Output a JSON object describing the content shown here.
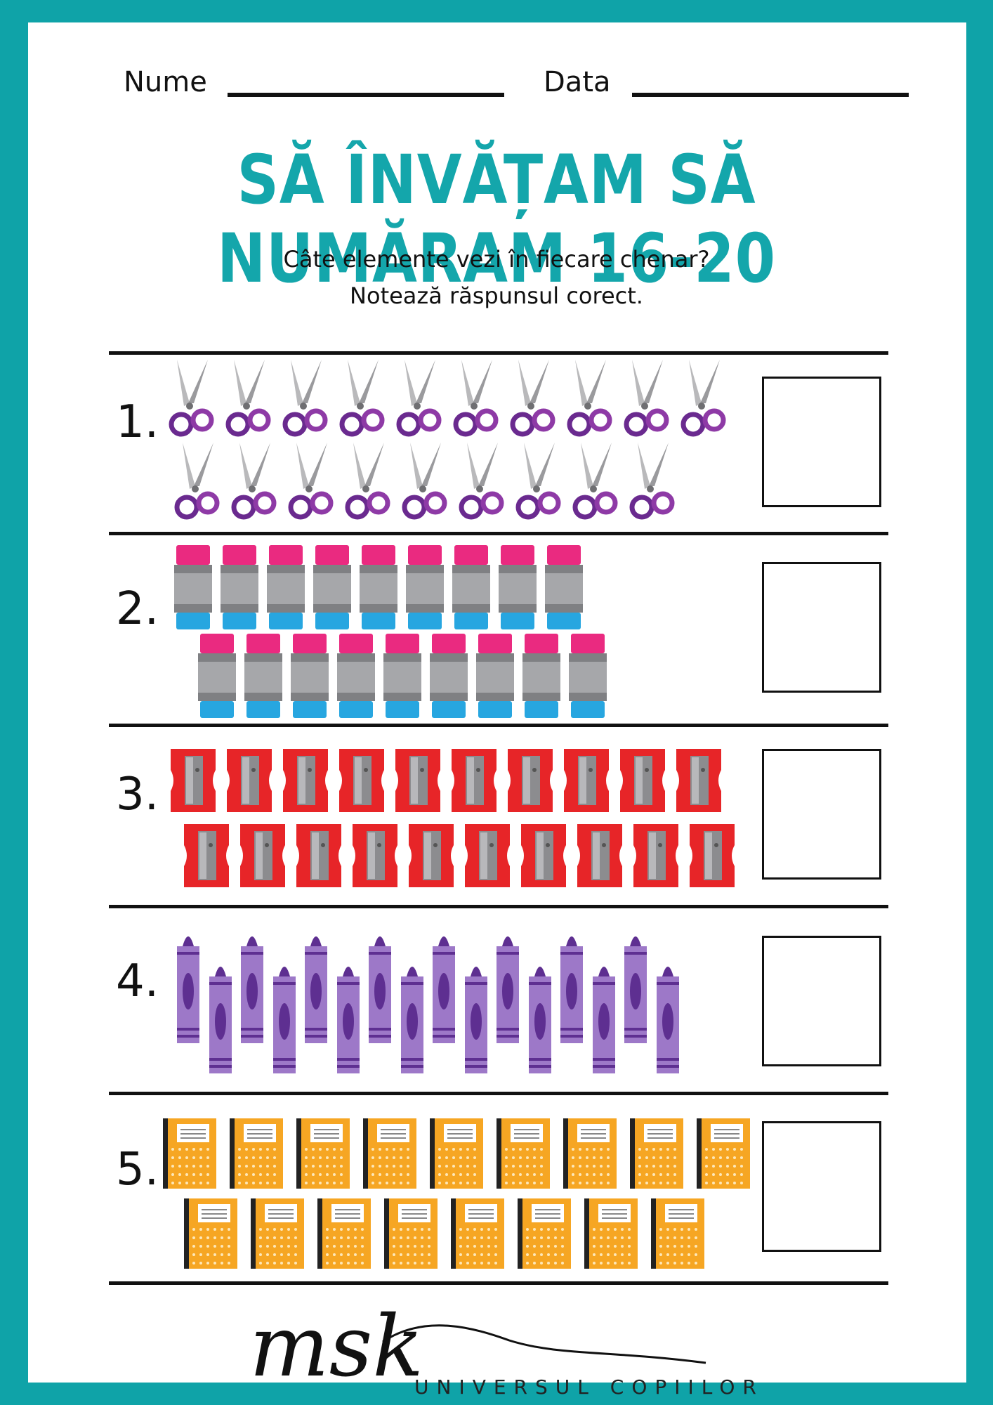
{
  "header": {
    "name_label": "Nume",
    "date_label": "Data"
  },
  "title": "SĂ ÎNVĂȚAM SĂ NUMĂRAM 16-20",
  "instructions": {
    "line1": "Câte elemente vezi în fiecare chenar?",
    "line2": "Notează răspunsul corect."
  },
  "exercises": [
    {
      "number": "1.",
      "item": "scissors-icon",
      "top_row": 10,
      "bottom_row": 9
    },
    {
      "number": "2.",
      "item": "eraser-icon",
      "top_row": 9,
      "bottom_row": 9
    },
    {
      "number": "3.",
      "item": "sharpener-icon",
      "top_row": 10,
      "bottom_row": 10
    },
    {
      "number": "4.",
      "item": "crayon-icon",
      "top_row": 8,
      "bottom_row": 8
    },
    {
      "number": "5.",
      "item": "notebook-icon",
      "top_row": 9,
      "bottom_row": 8
    }
  ],
  "footer": {
    "logo": "msk",
    "tagline": "UNIVERSUL COPIILOR"
  },
  "colors": {
    "border": "#0fa3a8",
    "title": "#14a6ab",
    "scissors": "#7b2e9c",
    "eraser_top": "#ea2a80",
    "eraser_bottom": "#27a6e0",
    "sharpener": "#e72528",
    "crayon": "#7c4ea8",
    "notebook": "#f6a623"
  }
}
